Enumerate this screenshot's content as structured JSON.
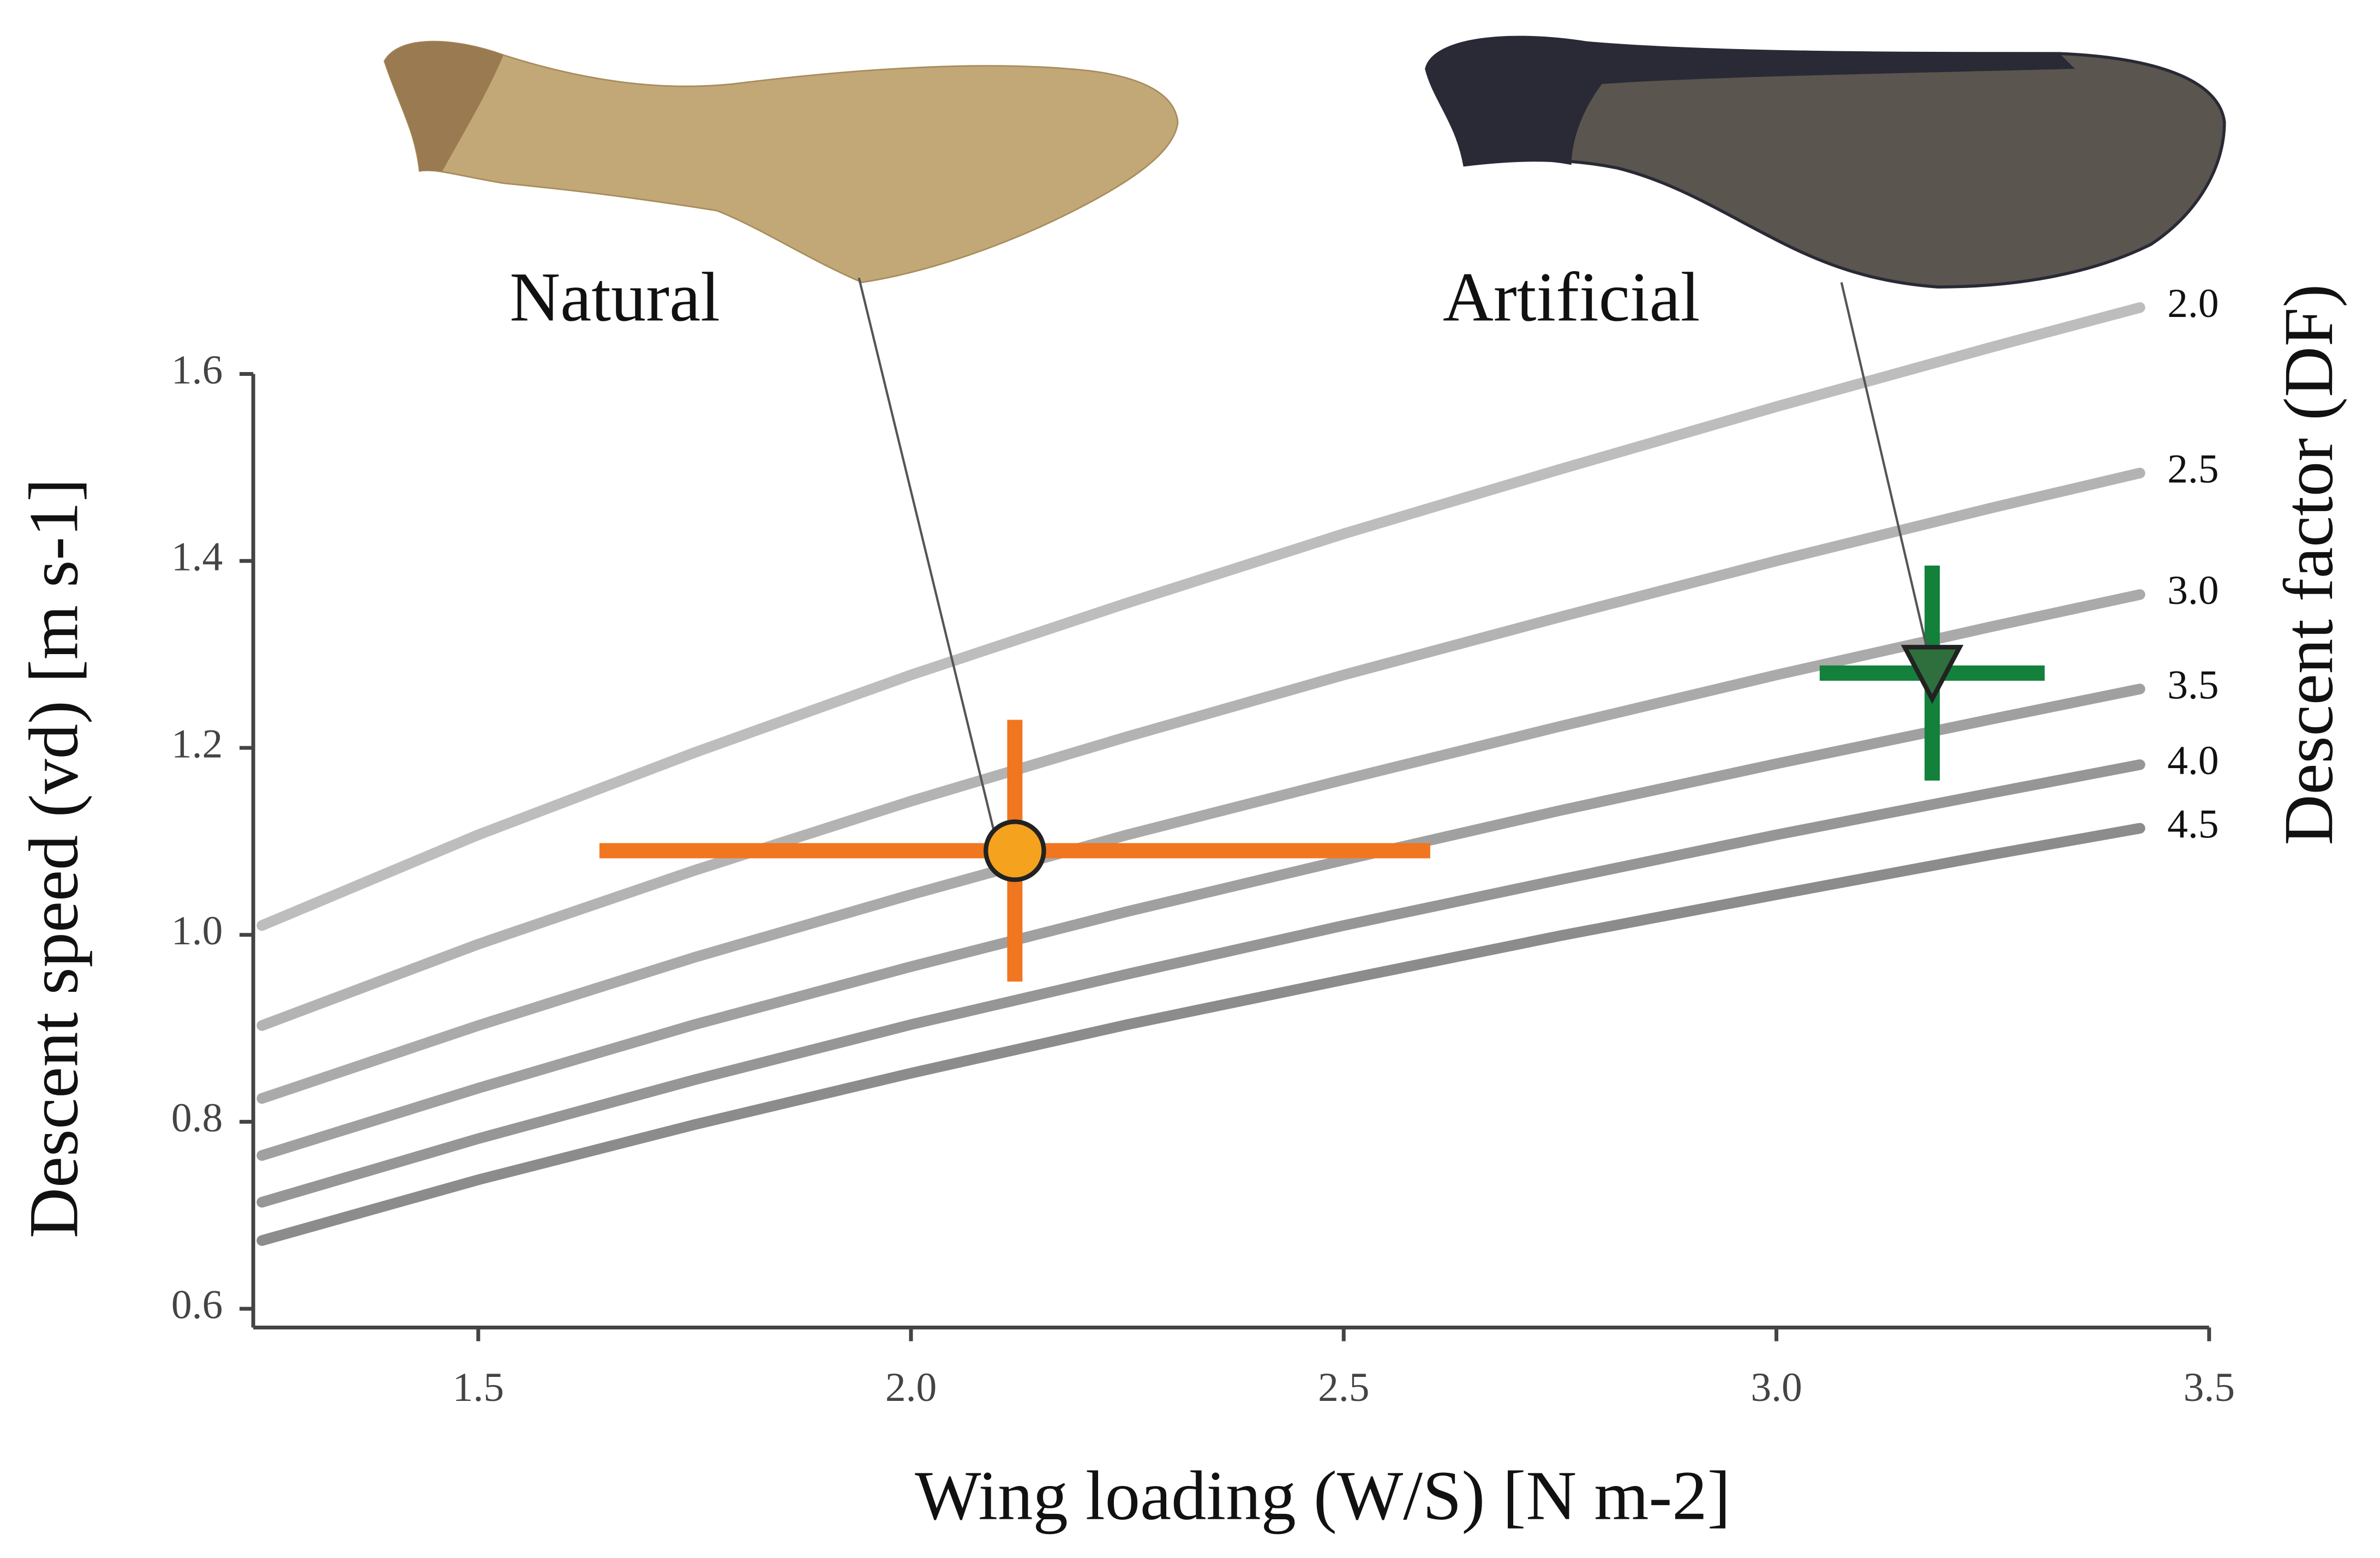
{
  "chart_data": {
    "type": "line",
    "xlabel": "Wing loading (W/S) [N m-2]",
    "ylabel": "Descent speed (vd) [m s-1]",
    "y2label": "Descent factor (DF)",
    "xlim": [
      1.24,
      3.5
    ],
    "ylim": [
      0.58,
      1.6
    ],
    "xticks": [
      {
        "value": 1.5,
        "label": "1.5"
      },
      {
        "value": 2.0,
        "label": "2.0"
      },
      {
        "value": 2.5,
        "label": "2.5"
      },
      {
        "value": 3.0,
        "label": "3.0"
      },
      {
        "value": 3.5,
        "label": "3.5"
      }
    ],
    "yticks": [
      {
        "value": 0.6,
        "label": "0.6"
      },
      {
        "value": 0.8,
        "label": "0.8"
      },
      {
        "value": 1.0,
        "label": "1.0"
      },
      {
        "value": 1.2,
        "label": "1.2"
      },
      {
        "value": 1.4,
        "label": "1.4"
      },
      {
        "value": 1.6,
        "label": "1.6"
      }
    ],
    "x": [
      1.25,
      1.5,
      1.75,
      2.0,
      2.25,
      2.5,
      2.75,
      3.0,
      3.25,
      3.42
    ],
    "series": [
      {
        "name": "2.0",
        "color": "#bdbdbd",
        "values": [
          1.01,
          1.107,
          1.195,
          1.278,
          1.355,
          1.429,
          1.498,
          1.565,
          1.629,
          1.671
        ]
      },
      {
        "name": "2.5",
        "color": "#b3b3b3",
        "values": [
          0.903,
          0.99,
          1.069,
          1.143,
          1.212,
          1.278,
          1.34,
          1.4,
          1.457,
          1.494
        ]
      },
      {
        "name": "3.0",
        "color": "#aaaaaa",
        "values": [
          0.825,
          0.903,
          0.976,
          1.043,
          1.107,
          1.166,
          1.223,
          1.278,
          1.33,
          1.364
        ]
      },
      {
        "name": "3.5",
        "color": "#a0a0a0",
        "values": [
          0.764,
          0.836,
          0.904,
          0.966,
          1.025,
          1.08,
          1.133,
          1.183,
          1.231,
          1.263
        ]
      },
      {
        "name": "4.0",
        "color": "#969696",
        "values": [
          0.714,
          0.782,
          0.845,
          0.904,
          0.958,
          1.01,
          1.059,
          1.107,
          1.152,
          1.182
        ]
      },
      {
        "name": "4.5",
        "color": "#8c8c8c",
        "values": [
          0.673,
          0.738,
          0.797,
          0.852,
          0.904,
          0.952,
          0.999,
          1.043,
          1.086,
          1.114
        ]
      }
    ],
    "points": [
      {
        "name": "Natural",
        "x": 2.12,
        "y": 1.09,
        "xerr": 0.48,
        "yerr": 0.14,
        "color": "#f07620",
        "marker_color": "#f5a21f",
        "marker": "circle"
      },
      {
        "name": "Artificial",
        "x": 3.18,
        "y": 1.28,
        "xerr": 0.13,
        "yerr": 0.115,
        "color": "#13803c",
        "marker_color": "#2f6f3e",
        "marker": "triangle"
      }
    ]
  }
}
